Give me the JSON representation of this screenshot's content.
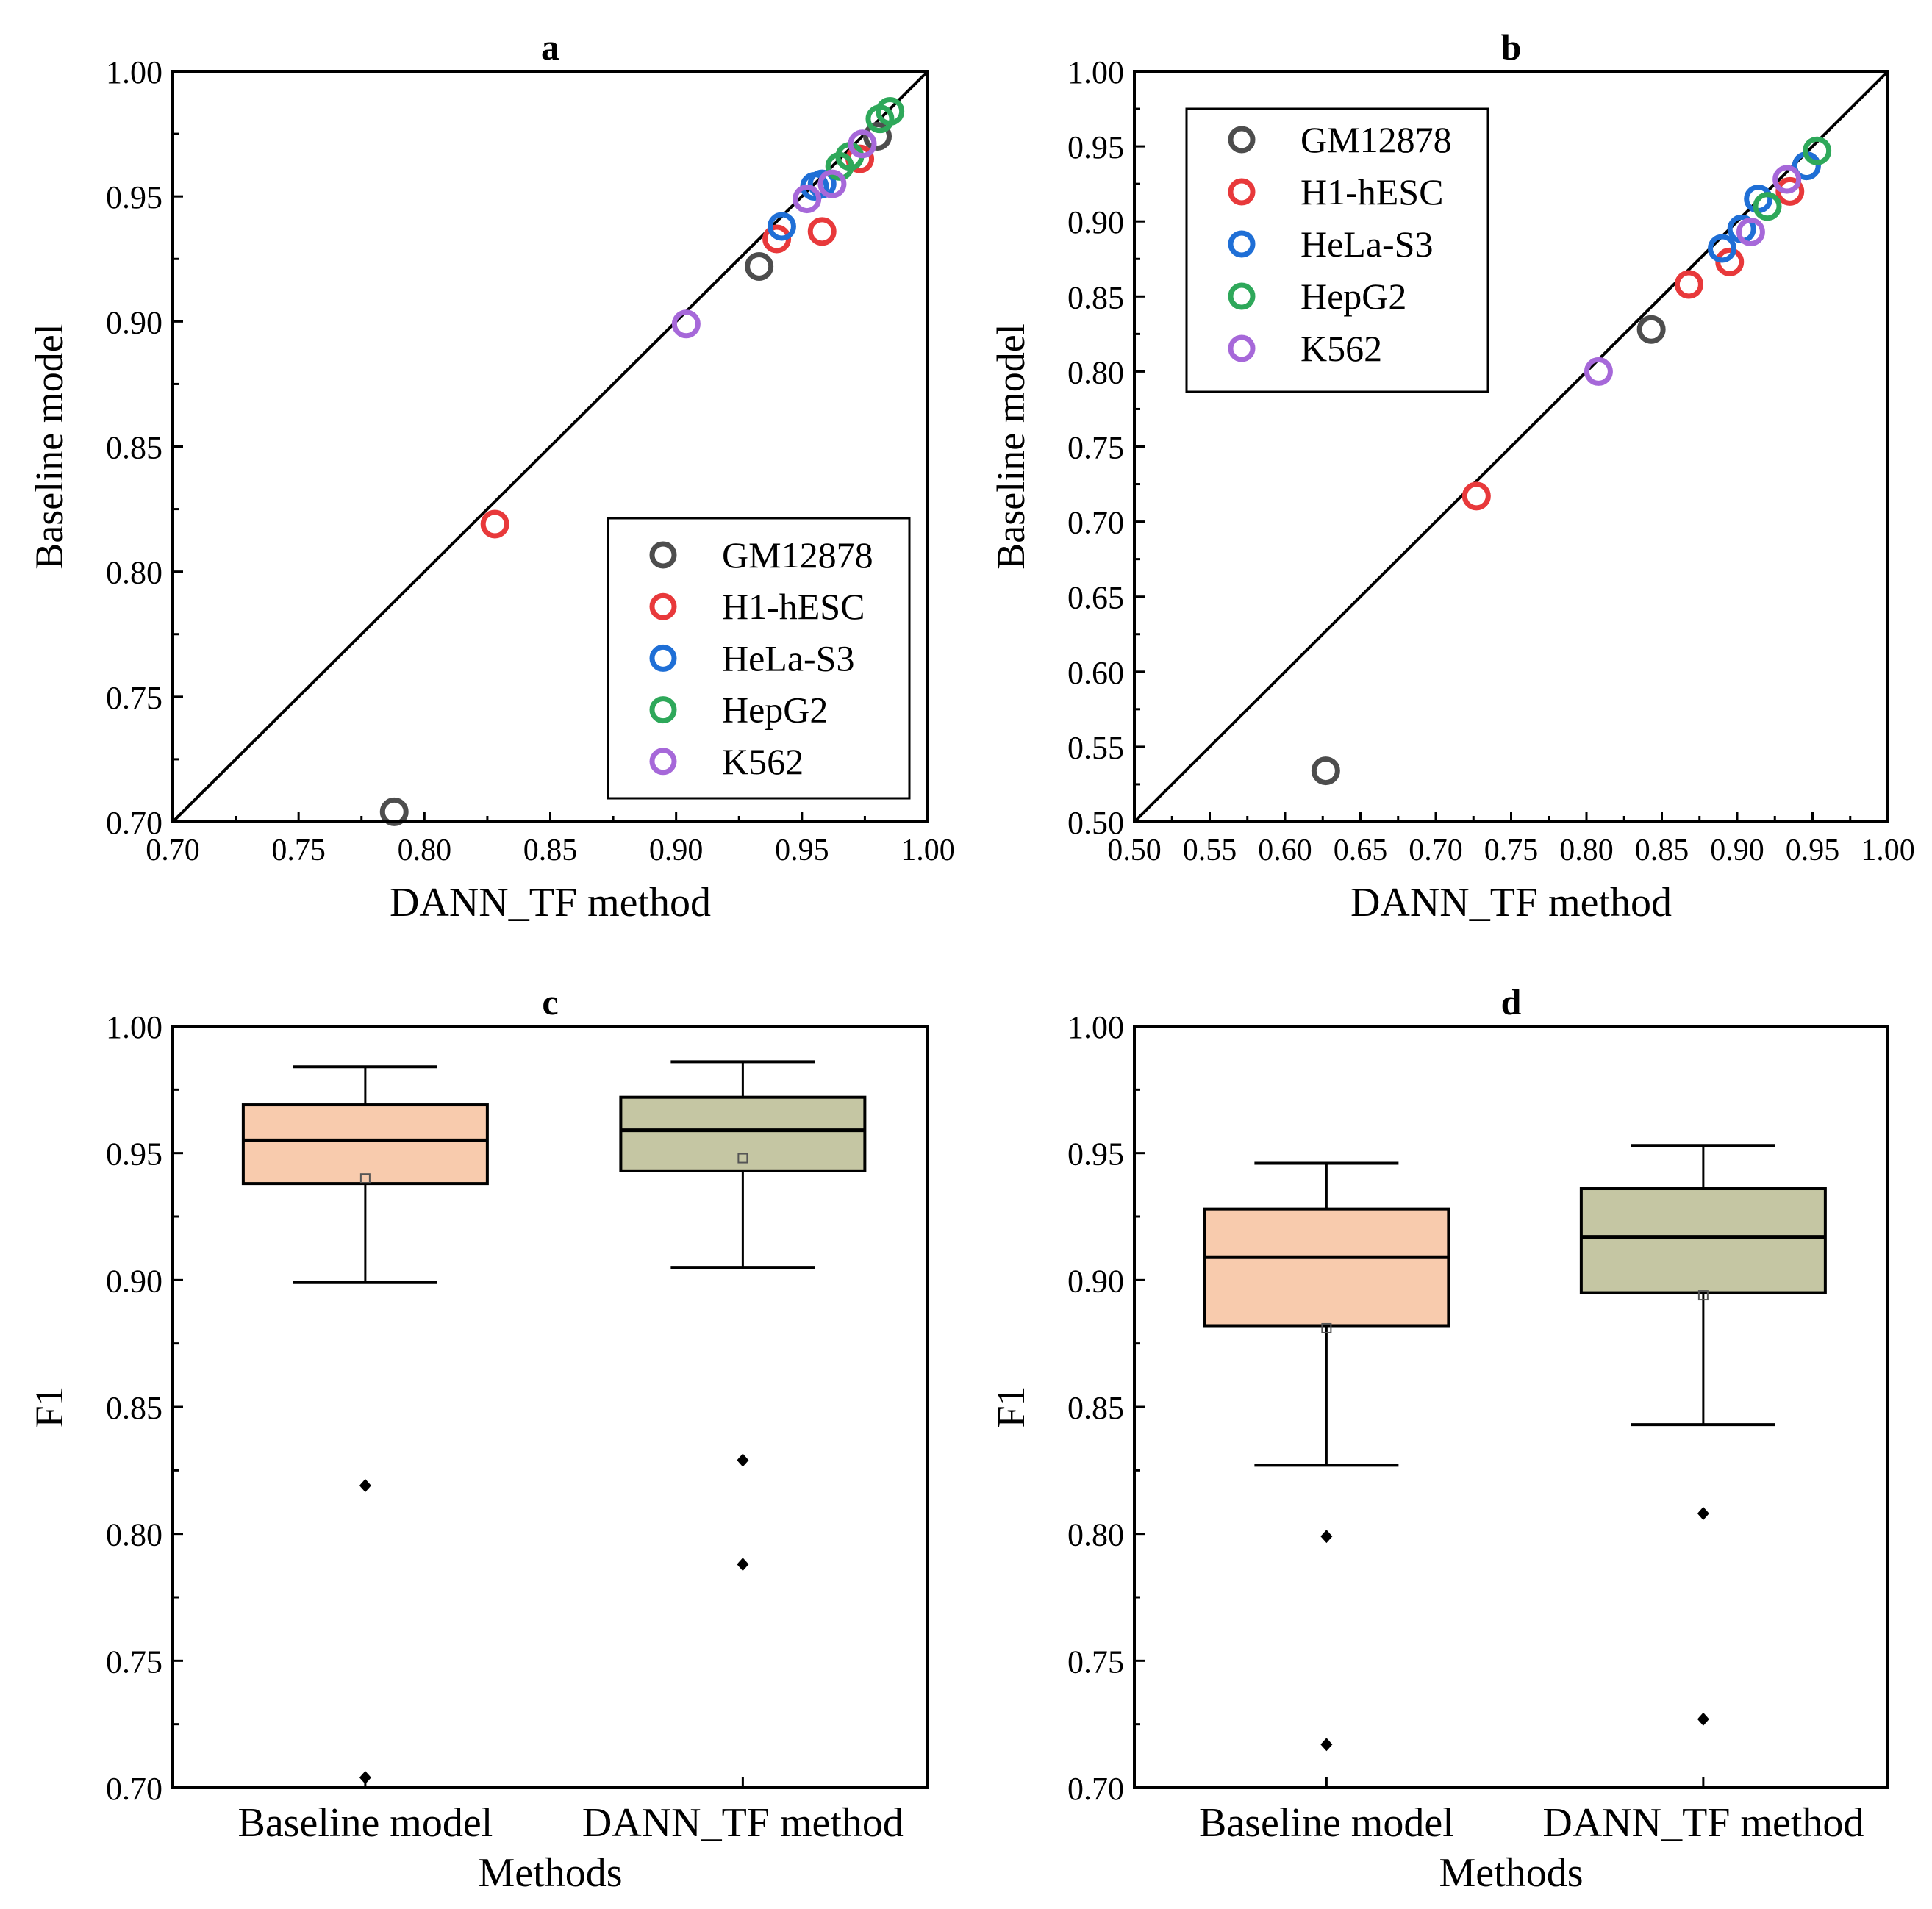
{
  "chart_data": [
    {
      "id": "a",
      "type": "scatter",
      "title": "a",
      "xlabel": "DANN_TF method",
      "ylabel": "Baseline model",
      "xlim": [
        0.7,
        1.0
      ],
      "ylim": [
        0.7,
        1.0
      ],
      "xticks": [
        "0.70",
        "0.75",
        "0.80",
        "0.85",
        "0.90",
        "0.95",
        "1.00"
      ],
      "yticks": [
        "0.70",
        "0.75",
        "0.80",
        "0.85",
        "0.90",
        "0.95",
        "1.00"
      ],
      "diagonal": true,
      "legend_position": "bottom-right",
      "series": [
        {
          "name": "GM12878",
          "color": "#4d4d4d",
          "points": [
            [
              0.788,
              0.704
            ],
            [
              0.933,
              0.922
            ],
            [
              0.98,
              0.974
            ]
          ]
        },
        {
          "name": "H1-hESC",
          "color": "#e8393b",
          "points": [
            [
              0.828,
              0.819
            ],
            [
              0.94,
              0.933
            ],
            [
              0.958,
              0.936
            ],
            [
              0.973,
              0.965
            ]
          ]
        },
        {
          "name": "HeLa-S3",
          "color": "#1f6fd6",
          "points": [
            [
              0.942,
              0.938
            ],
            [
              0.955,
              0.954
            ],
            [
              0.958,
              0.955
            ]
          ]
        },
        {
          "name": "HepG2",
          "color": "#2ea85a",
          "points": [
            [
              0.965,
              0.962
            ],
            [
              0.969,
              0.966
            ],
            [
              0.981,
              0.981
            ],
            [
              0.985,
              0.984
            ]
          ]
        },
        {
          "name": "K562",
          "color": "#a668d9",
          "points": [
            [
              0.904,
              0.899
            ],
            [
              0.952,
              0.949
            ],
            [
              0.962,
              0.955
            ],
            [
              0.974,
              0.971
            ]
          ]
        }
      ]
    },
    {
      "id": "b",
      "type": "scatter",
      "title": "b",
      "xlabel": "DANN_TF method",
      "ylabel": "Baseline model",
      "xlim": [
        0.5,
        1.0
      ],
      "ylim": [
        0.5,
        1.0
      ],
      "xticks": [
        "0.50",
        "0.55",
        "0.60",
        "0.65",
        "0.70",
        "0.75",
        "0.80",
        "0.85",
        "0.90",
        "0.95",
        "1.00"
      ],
      "yticks": [
        "0.50",
        "0.55",
        "0.60",
        "0.65",
        "0.70",
        "0.75",
        "0.80",
        "0.85",
        "0.90",
        "0.95",
        "1.00"
      ],
      "diagonal": true,
      "legend_position": "top-left",
      "series": [
        {
          "name": "GM12878",
          "color": "#4d4d4d",
          "points": [
            [
              0.627,
              0.534
            ],
            [
              0.843,
              0.828
            ],
            [
              0.946,
              0.937
            ]
          ]
        },
        {
          "name": "H1-hESC",
          "color": "#e8393b",
          "points": [
            [
              0.727,
              0.717
            ],
            [
              0.868,
              0.858
            ],
            [
              0.895,
              0.873
            ],
            [
              0.935,
              0.92
            ]
          ]
        },
        {
          "name": "HeLa-S3",
          "color": "#1f6fd6",
          "points": [
            [
              0.89,
              0.882
            ],
            [
              0.903,
              0.895
            ],
            [
              0.914,
              0.915
            ],
            [
              0.946,
              0.937
            ]
          ]
        },
        {
          "name": "HepG2",
          "color": "#2ea85a",
          "points": [
            [
              0.92,
              0.91
            ],
            [
              0.953,
              0.947
            ]
          ]
        },
        {
          "name": "K562",
          "color": "#a668d9",
          "points": [
            [
              0.808,
              0.8
            ],
            [
              0.909,
              0.893
            ],
            [
              0.933,
              0.928
            ]
          ]
        }
      ]
    },
    {
      "id": "c",
      "type": "box",
      "title": "c",
      "xlabel": "Methods",
      "ylabel": "F1",
      "ylim": [
        0.7,
        1.0
      ],
      "yticks": [
        "0.70",
        "0.75",
        "0.80",
        "0.85",
        "0.90",
        "0.95",
        "1.00"
      ],
      "categories": [
        "Baseline model",
        "DANN_TF method"
      ],
      "boxes": [
        {
          "name": "Baseline model",
          "color": "#f8cbad",
          "whisker_low": 0.899,
          "q1": 0.938,
          "median": 0.955,
          "q3": 0.969,
          "whisker_high": 0.984,
          "mean": 0.94,
          "outliers": [
            0.819,
            0.704
          ]
        },
        {
          "name": "DANN_TF method",
          "color": "#c5c6a3",
          "whisker_low": 0.905,
          "q1": 0.943,
          "median": 0.959,
          "q3": 0.972,
          "whisker_high": 0.986,
          "mean": 0.948,
          "outliers": [
            0.829,
            0.788
          ]
        }
      ]
    },
    {
      "id": "d",
      "type": "box",
      "title": "d",
      "xlabel": "Methods",
      "ylabel": "F1",
      "ylim": [
        0.7,
        1.0
      ],
      "yticks": [
        "0.70",
        "0.75",
        "0.80",
        "0.85",
        "0.90",
        "0.95",
        "1.00"
      ],
      "categories": [
        "Baseline model",
        "DANN_TF method"
      ],
      "boxes": [
        {
          "name": "Baseline model",
          "color": "#f8cbad",
          "whisker_low": 0.827,
          "q1": 0.882,
          "median": 0.909,
          "q3": 0.928,
          "whisker_high": 0.946,
          "mean": 0.881,
          "outliers": [
            0.799,
            0.717
          ]
        },
        {
          "name": "DANN_TF method",
          "color": "#c5c6a3",
          "whisker_low": 0.843,
          "q1": 0.895,
          "median": 0.917,
          "q3": 0.936,
          "whisker_high": 0.953,
          "mean": 0.894,
          "outliers": [
            0.808,
            0.727
          ]
        }
      ]
    }
  ]
}
